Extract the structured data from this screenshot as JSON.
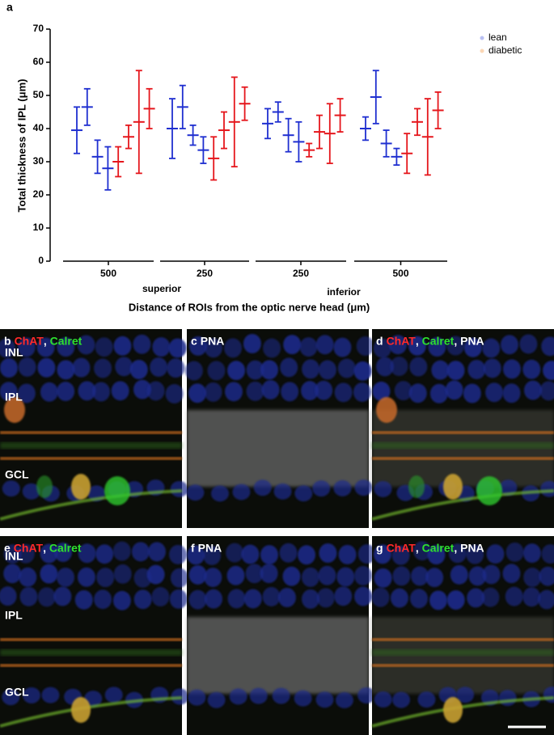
{
  "panel_label": "a",
  "chart_data": {
    "type": "errorbar",
    "y_label": "Total thickness of IPL (μm)",
    "x_label": "Distance of ROIs from the optic nerve head (μm)",
    "groups": [
      "500",
      "250",
      "250",
      "500"
    ],
    "regions": [
      "superior",
      "inferior"
    ],
    "ylim": [
      0,
      70
    ],
    "yticks": [
      0,
      10,
      20,
      30,
      40,
      50,
      60,
      70
    ],
    "legend": "top-right",
    "series": [
      {
        "name": "lean",
        "color": "#1f2fd0",
        "dot_color": "#b9c0f2",
        "values": [
          39.5,
          46.5,
          31.5,
          28,
          40,
          46.5,
          38,
          33.5,
          41.5,
          45,
          38,
          36,
          40,
          49.5,
          35.5,
          31.5
        ],
        "errors": [
          7,
          5.5,
          5,
          6.5,
          9,
          6.5,
          3,
          4,
          4.5,
          3,
          5,
          6,
          3.5,
          8,
          4,
          2.5
        ]
      },
      {
        "name": "diabetic",
        "color": "#e5161c",
        "dot_color": "#fbd7b6",
        "values": [
          30,
          37.5,
          42,
          46,
          31,
          39.5,
          42,
          47.5,
          33.5,
          39,
          38.5,
          44,
          32.5,
          42,
          37.5,
          45.5
        ],
        "errors": [
          4.5,
          3.5,
          15.5,
          6,
          6.5,
          5.5,
          13.5,
          5,
          2,
          5,
          9,
          5,
          6,
          4,
          11.5,
          5.5
        ]
      }
    ]
  },
  "image_panels": [
    {
      "letter": "b",
      "title_parts": [
        "ChAT",
        ", ",
        "Calret"
      ],
      "title_colors": [
        "#ff2a2a",
        "#ffffff",
        "#2ee02e"
      ],
      "layers": [
        "INL",
        "IPL",
        "GCL"
      ]
    },
    {
      "letter": "c",
      "title_parts": [
        "PNA"
      ],
      "title_colors": [
        "#ffffff"
      ],
      "layers": []
    },
    {
      "letter": "d",
      "title_parts": [
        "ChAT",
        ", ",
        "Calret",
        ", ",
        "PNA"
      ],
      "title_colors": [
        "#ff2a2a",
        "#ffffff",
        "#2ee02e",
        "#ffffff",
        "#ffffff"
      ],
      "layers": []
    },
    {
      "letter": "e",
      "title_parts": [
        "ChAT",
        ", ",
        "Calret"
      ],
      "title_colors": [
        "#ff2a2a",
        "#ffffff",
        "#2ee02e"
      ],
      "layers": [
        "INL",
        "IPL",
        "GCL"
      ]
    },
    {
      "letter": "f",
      "title_parts": [
        "PNA"
      ],
      "title_colors": [
        "#ffffff"
      ],
      "layers": []
    },
    {
      "letter": "g",
      "title_parts": [
        "ChAT",
        ", ",
        "Calret",
        ", ",
        "PNA"
      ],
      "title_colors": [
        "#ff2a2a",
        "#ffffff",
        "#2ee02e",
        "#ffffff",
        "#ffffff"
      ],
      "layers": []
    }
  ]
}
